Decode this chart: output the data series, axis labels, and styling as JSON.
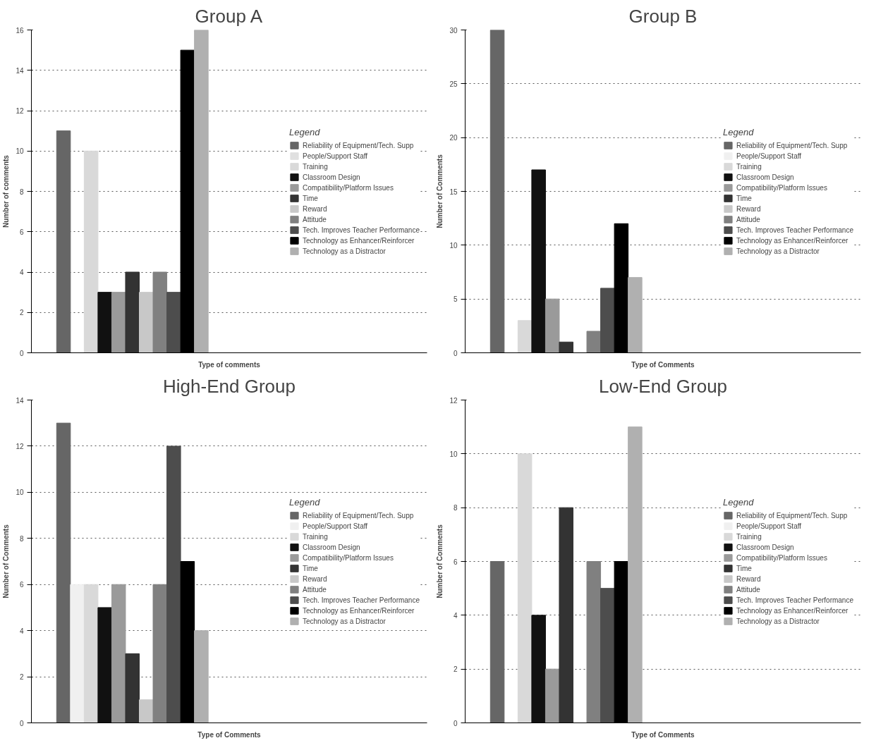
{
  "chart_data": [
    {
      "type": "bar",
      "title": "Group A",
      "xlabel": "Type of comments",
      "ylabel": "Number of comments",
      "legend_title": "Legend",
      "legend": "right",
      "grid": "y",
      "categories": [
        null
      ],
      "ylim": [
        0,
        16
      ],
      "yticks": [
        0,
        2,
        4,
        6,
        8,
        10,
        12,
        14,
        16
      ],
      "series": [
        {
          "name": "Reliability of Equipment/Tech. Supp",
          "color": "#666666",
          "values": [
            11
          ]
        },
        {
          "name": "People/Support Staff",
          "color": "#e0e0e0",
          "values": [
            0
          ]
        },
        {
          "name": "Training",
          "color": "#d9d9d9",
          "values": [
            10
          ]
        },
        {
          "name": "Classroom Design",
          "color": "#111111",
          "values": [
            3
          ]
        },
        {
          "name": "Compatibility/Platform Issues",
          "color": "#9a9a9a",
          "values": [
            3
          ]
        },
        {
          "name": "Time",
          "color": "#333333",
          "values": [
            4
          ]
        },
        {
          "name": "Reward",
          "color": "#c8c8c8",
          "values": [
            3
          ]
        },
        {
          "name": "Attitude",
          "color": "#808080",
          "values": [
            4
          ]
        },
        {
          "name": "Tech. Improves Teacher Performance",
          "color": "#4d4d4d",
          "values": [
            3
          ]
        },
        {
          "name": "Technology as Enhancer/Reinforcer",
          "color": "#000000",
          "values": [
            15
          ]
        },
        {
          "name": "Technology as a Distractor",
          "color": "#b0b0b0",
          "values": [
            16
          ]
        }
      ]
    },
    {
      "type": "bar",
      "title": "Group B",
      "xlabel": "Type of Comments",
      "ylabel": "Number of Comments",
      "legend_title": "Legend",
      "legend": "right",
      "grid": "y",
      "categories": [
        null
      ],
      "ylim": [
        0,
        30
      ],
      "yticks": [
        0,
        5,
        10,
        15,
        20,
        25,
        30
      ],
      "series": [
        {
          "name": "Reliability of Equipment/Tech. Supp",
          "color": "#666666",
          "values": [
            30
          ]
        },
        {
          "name": "People/Support Staff",
          "color": "#f0f0f0",
          "values": [
            0
          ]
        },
        {
          "name": "Training",
          "color": "#d9d9d9",
          "values": [
            3
          ]
        },
        {
          "name": "Classroom Design",
          "color": "#111111",
          "values": [
            17
          ]
        },
        {
          "name": "Compatibility/Platform Issues",
          "color": "#9a9a9a",
          "values": [
            5
          ]
        },
        {
          "name": "Time",
          "color": "#333333",
          "values": [
            1
          ]
        },
        {
          "name": "Reward",
          "color": "#c8c8c8",
          "values": [
            0
          ]
        },
        {
          "name": "Attitude",
          "color": "#808080",
          "values": [
            2
          ]
        },
        {
          "name": "Tech. Improves Teacher Performance",
          "color": "#4d4d4d",
          "values": [
            6
          ]
        },
        {
          "name": "Technology as Enhancer/Reinforcer",
          "color": "#000000",
          "values": [
            12
          ]
        },
        {
          "name": "Technology as a Distractor",
          "color": "#b0b0b0",
          "values": [
            7
          ]
        }
      ]
    },
    {
      "type": "bar",
      "title": "High-End Group",
      "xlabel": "Type of Comments",
      "ylabel": "Number of Comments",
      "legend_title": "Legend",
      "legend": "right",
      "grid": "y",
      "categories": [
        null
      ],
      "ylim": [
        0,
        14
      ],
      "yticks": [
        0,
        2,
        4,
        6,
        8,
        10,
        12,
        14
      ],
      "series": [
        {
          "name": "Reliability of Equipment/Tech. Supp",
          "color": "#666666",
          "values": [
            13
          ]
        },
        {
          "name": "People/Support Staff",
          "color": "#f0f0f0",
          "values": [
            6
          ]
        },
        {
          "name": "Training",
          "color": "#d9d9d9",
          "values": [
            6
          ]
        },
        {
          "name": "Classroom Design",
          "color": "#111111",
          "values": [
            5
          ]
        },
        {
          "name": "Compatibility/Platform Issues",
          "color": "#9a9a9a",
          "values": [
            6
          ]
        },
        {
          "name": "Time",
          "color": "#333333",
          "values": [
            3
          ]
        },
        {
          "name": "Reward",
          "color": "#c8c8c8",
          "values": [
            1
          ]
        },
        {
          "name": "Attitude",
          "color": "#808080",
          "values": [
            6
          ]
        },
        {
          "name": "Tech. Improves Teacher Performance",
          "color": "#4d4d4d",
          "values": [
            12
          ]
        },
        {
          "name": "Technology as Enhancer/Reinforcer",
          "color": "#000000",
          "values": [
            7
          ]
        },
        {
          "name": "Technology as a Distractor",
          "color": "#b0b0b0",
          "values": [
            4
          ]
        }
      ]
    },
    {
      "type": "bar",
      "title": "Low-End Group",
      "xlabel": "Type of Comments",
      "ylabel": "Number of Comments",
      "legend_title": "Legend",
      "legend": "right",
      "grid": "y",
      "categories": [
        null
      ],
      "ylim": [
        0,
        12
      ],
      "yticks": [
        0,
        2,
        4,
        6,
        8,
        10,
        12
      ],
      "series": [
        {
          "name": "Reliability of Equipment/Tech. Supp",
          "color": "#666666",
          "values": [
            6
          ]
        },
        {
          "name": "People/Support Staff",
          "color": "#f0f0f0",
          "values": [
            0
          ]
        },
        {
          "name": "Training",
          "color": "#d9d9d9",
          "values": [
            10
          ]
        },
        {
          "name": "Classroom Design",
          "color": "#111111",
          "values": [
            4
          ]
        },
        {
          "name": "Compatibility/Platform Issues",
          "color": "#9a9a9a",
          "values": [
            2
          ]
        },
        {
          "name": "Time",
          "color": "#333333",
          "values": [
            8
          ]
        },
        {
          "name": "Reward",
          "color": "#c8c8c8",
          "values": [
            0
          ]
        },
        {
          "name": "Attitude",
          "color": "#808080",
          "values": [
            6
          ]
        },
        {
          "name": "Tech. Improves Teacher Performance",
          "color": "#4d4d4d",
          "values": [
            5
          ]
        },
        {
          "name": "Technology as Enhancer/Reinforcer",
          "color": "#000000",
          "values": [
            6
          ]
        },
        {
          "name": "Technology as a Distractor",
          "color": "#b0b0b0",
          "values": [
            11
          ]
        }
      ]
    }
  ]
}
